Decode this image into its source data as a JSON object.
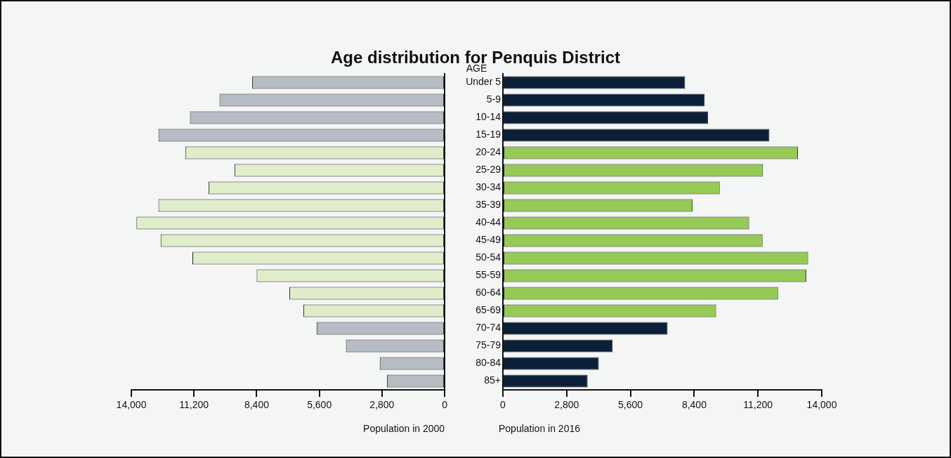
{
  "chart_data": [
    {
      "type": "bar",
      "orientation": "horizontal",
      "title": "Age distribution for Penquis District",
      "xlabel": "Population in 2000",
      "categories": [
        null,
        null,
        null,
        null,
        null,
        null,
        null,
        null,
        null,
        null,
        null,
        null,
        null,
        null,
        null,
        null,
        null,
        null
      ],
      "values": [
        8600,
        10060,
        11380,
        12790,
        11590,
        9390,
        10550,
        12790,
        13770,
        12690,
        11270,
        8400,
        6940,
        6310,
        5720,
        4410,
        2900,
        2580
      ],
      "colors": [
        "#b6bcc4",
        "#b6bcc4",
        "#b6bcc4",
        "#b6bcc4",
        "#e0edca",
        "#e0edca",
        "#e0edca",
        "#e0edca",
        "#e0edca",
        "#e0edca",
        "#e0edca",
        "#e0edca",
        "#e0edca",
        "#e0edca",
        "#b6bcc4",
        "#b6bcc4",
        "#b6bcc4",
        "#b6bcc4"
      ],
      "xlim": [
        14000,
        0
      ],
      "xticks": [
        {
          "value": 14000,
          "label": "14,000"
        },
        {
          "value": 11200,
          "label": "11,200"
        },
        {
          "value": 8400,
          "label": "8,400"
        },
        {
          "value": 5600,
          "label": "5,600"
        },
        {
          "value": 2800,
          "label": "2,800"
        },
        0
      ],
      "tick_labels": "x",
      "grid": false,
      "legend": false
    },
    {
      "type": "bar",
      "orientation": "horizontal",
      "xlabel": "Population in 2016",
      "ylabel": "AGE",
      "categories": [
        "Under 5",
        "5-9",
        "10-14",
        "15-19",
        "20-24",
        "25-29",
        "30-34",
        "35-39",
        "40-44",
        "45-49",
        "50-54",
        "55-59",
        "60-64",
        "65-69",
        "70-74",
        "75-79",
        "80-84",
        "85+"
      ],
      "values": [
        8000,
        8860,
        9010,
        11700,
        12950,
        11420,
        9520,
        8330,
        10810,
        11400,
        13400,
        13320,
        12080,
        9360,
        7230,
        4820,
        4210,
        3720
      ],
      "colors": [
        "#0b1f38",
        "#0b1f38",
        "#0b1f38",
        "#0b1f38",
        "#96c956",
        "#96c956",
        "#96c956",
        "#96c956",
        "#96c956",
        "#96c956",
        "#96c956",
        "#96c956",
        "#96c956",
        "#96c956",
        "#0b1f38",
        "#0b1f38",
        "#0b1f38",
        "#0b1f38"
      ],
      "xlim": [
        0,
        14000
      ],
      "xticks": [
        0,
        {
          "value": 2800,
          "label": "2,800"
        },
        {
          "value": 5600,
          "label": "5,600"
        },
        {
          "value": 8400,
          "label": "8,400"
        },
        {
          "value": 11200,
          "label": "11,200"
        },
        {
          "value": 14000,
          "label": "14,000"
        }
      ],
      "grid": false,
      "legend": false
    }
  ]
}
